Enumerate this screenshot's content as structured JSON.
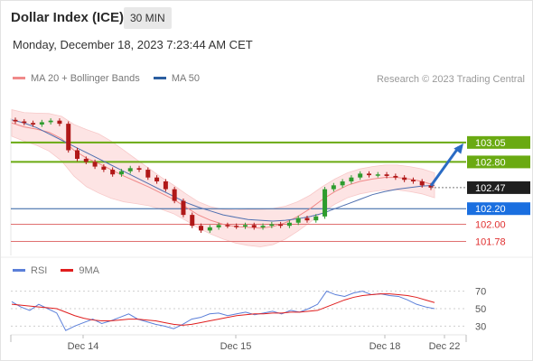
{
  "header": {
    "title": "Dollar Index (ICE)",
    "timeframe": "30 MIN",
    "datetime": "Monday, December 18, 2023 7:23:44 AM CET"
  },
  "legend": {
    "items": [
      {
        "label": "MA 20 + Bollinger Bands",
        "color": "#f08a8a"
      },
      {
        "label": "MA 50",
        "color": "#2b5fa0"
      }
    ],
    "credit": "Research © 2023 Trading Central"
  },
  "rsi_legend": {
    "items": [
      {
        "label": "RSI",
        "color": "#5b7fd9"
      },
      {
        "label": "9MA",
        "color": "#e01e1e"
      }
    ]
  },
  "colors": {
    "candle_up": "#2e9c2e",
    "candle_down": "#b01818",
    "resistance": "#6aaa12",
    "pivot": "#2b5fa0",
    "pivot_label_bg": "#1a6fe0",
    "support": "#e07070",
    "support_text": "#e03030",
    "last_price_bg": "#1f1f1f",
    "arrow": "#2a6bc4",
    "bb_fill": "#fde2e2",
    "ma20": "#f08a8a",
    "ma50": "#5070b0"
  },
  "chart_data": [
    {
      "type": "candlestick",
      "title": "Dollar Index (ICE)",
      "timeframe": "30 MIN",
      "x_tick_labels": [
        "Dec 14",
        "Dec 15",
        "Dec 18",
        "Dec 22"
      ],
      "ylim": [
        101.6,
        103.5
      ],
      "levels": {
        "resistance": [
          103.05,
          102.8
        ],
        "last_price": 102.47,
        "pivot": 102.2,
        "support": [
          102.0,
          101.78
        ]
      },
      "price_labels": [
        "103.05",
        "102.80",
        "102.47",
        "102.20",
        "102.00",
        "101.78"
      ],
      "series": [
        {
          "name": "MA 20 + Bollinger Bands",
          "values": [
            103.3,
            103.25,
            103.22,
            103.18,
            103.1,
            102.95,
            102.85,
            102.78,
            102.7,
            102.62,
            102.55,
            102.48,
            102.4,
            102.32,
            102.22,
            102.12,
            102.05,
            102.0,
            101.97,
            101.96,
            101.95,
            101.97,
            102.02,
            102.1,
            102.2,
            102.32,
            102.42,
            102.5,
            102.55,
            102.58,
            102.6,
            102.6,
            102.58,
            102.55,
            102.5
          ]
        },
        {
          "name": "MA 50",
          "values": [
            103.34,
            103.3,
            103.24,
            103.16,
            103.08,
            103.0,
            102.92,
            102.84,
            102.76,
            102.68,
            102.6,
            102.52,
            102.44,
            102.36,
            102.28,
            102.22,
            102.17,
            102.12,
            102.09,
            102.06,
            102.05,
            102.04,
            102.05,
            102.07,
            102.1,
            102.14,
            102.2,
            102.26,
            102.32,
            102.38,
            102.42,
            102.45,
            102.47,
            102.49,
            102.5
          ]
        }
      ],
      "close": [
        103.32,
        103.3,
        103.28,
        103.31,
        103.33,
        103.29,
        102.95,
        102.84,
        102.8,
        102.74,
        102.7,
        102.64,
        102.68,
        102.72,
        102.7,
        102.6,
        102.55,
        102.45,
        102.3,
        102.12,
        101.98,
        101.92,
        101.96,
        101.99,
        101.98,
        101.97,
        101.99,
        101.96,
        101.98,
        102.0,
        101.98,
        102.02,
        102.08,
        102.05,
        102.1,
        102.45,
        102.5,
        102.55,
        102.6,
        102.65,
        102.63,
        102.64,
        102.62,
        102.6,
        102.57,
        102.55,
        102.5,
        102.47
      ]
    },
    {
      "type": "line",
      "title": "RSI",
      "ylim": [
        20,
        80
      ],
      "y_tick_labels": [
        "70",
        "50",
        "30"
      ],
      "series": [
        {
          "name": "RSI",
          "values": [
            58,
            52,
            48,
            55,
            50,
            45,
            25,
            30,
            34,
            38,
            33,
            36,
            40,
            44,
            38,
            35,
            32,
            30,
            27,
            32,
            38,
            40,
            44,
            45,
            42,
            44,
            46,
            43,
            45,
            47,
            44,
            48,
            46,
            50,
            55,
            70,
            66,
            64,
            68,
            70,
            66,
            67,
            65,
            64,
            60,
            55,
            52,
            50
          ]
        },
        {
          "name": "9MA",
          "values": [
            55,
            54,
            53,
            52,
            51,
            50,
            46,
            42,
            39,
            37,
            36,
            36,
            37,
            38,
            38,
            37,
            36,
            34,
            32,
            31,
            32,
            34,
            36,
            38,
            40,
            42,
            43,
            44,
            44,
            45,
            45,
            46,
            46,
            47,
            48,
            52,
            56,
            60,
            63,
            65,
            66,
            67,
            67,
            66,
            65,
            63,
            60,
            57
          ]
        }
      ]
    }
  ]
}
